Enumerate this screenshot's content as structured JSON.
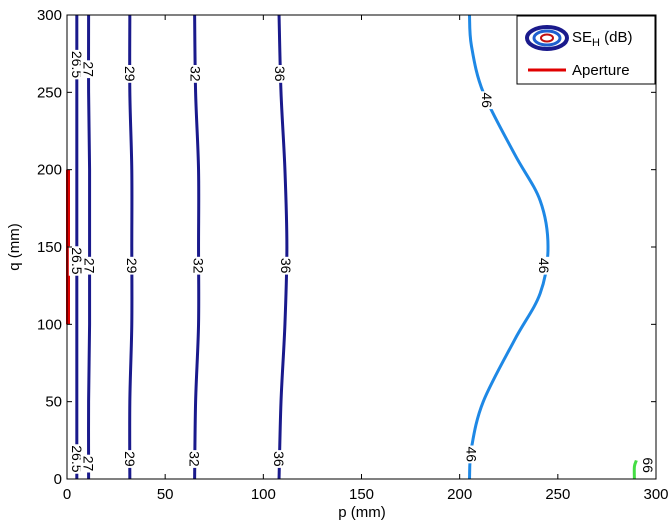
{
  "chart_data": {
    "type": "contour",
    "xlabel": "p (mm)",
    "ylabel": "q (mm)",
    "xlim": [
      0,
      300
    ],
    "ylim": [
      0,
      300
    ],
    "xticks": [
      "0",
      "50",
      "100",
      "150",
      "200",
      "250",
      "300"
    ],
    "yticks": [
      "0",
      "50",
      "100",
      "150",
      "200",
      "250",
      "300"
    ],
    "legend": {
      "position": "top-right",
      "entries": [
        {
          "label_main": "SE",
          "label_sub": "H",
          "label_unit": " (dB)",
          "symbol": "contour-ellipses"
        },
        {
          "label": "Aperture",
          "symbol": "line",
          "color": "#e00000"
        }
      ]
    },
    "aperture": {
      "p": 0,
      "q_range": [
        100,
        200
      ],
      "color": "#e00000"
    },
    "contours": [
      {
        "level": 26.5,
        "color": "#1a1a8c",
        "points": [
          [
            5,
            0
          ],
          [
            5,
            50
          ],
          [
            5,
            100
          ],
          [
            5,
            150
          ],
          [
            5,
            200
          ],
          [
            5,
            250
          ],
          [
            5,
            300
          ]
        ],
        "labels": [
          {
            "text": "26.5",
            "at": [
              5,
              13
            ]
          },
          {
            "text": "26.5",
            "at": [
              5,
              141
            ]
          },
          {
            "text": "26.5",
            "at": [
              5,
              268
            ]
          }
        ]
      },
      {
        "level": 27,
        "color": "#1a1a8c",
        "points": [
          [
            11,
            0
          ],
          [
            11,
            50
          ],
          [
            11.5,
            100
          ],
          [
            11.5,
            150
          ],
          [
            11.5,
            200
          ],
          [
            11,
            250
          ],
          [
            11,
            300
          ]
        ],
        "labels": [
          {
            "text": "27",
            "at": [
              11,
              10
            ]
          },
          {
            "text": "27",
            "at": [
              11.5,
              138
            ]
          },
          {
            "text": "27",
            "at": [
              11,
              265
            ]
          }
        ]
      },
      {
        "level": 29,
        "color": "#1a1a8c",
        "points": [
          [
            32,
            0
          ],
          [
            32,
            50
          ],
          [
            33,
            100
          ],
          [
            33,
            150
          ],
          [
            33,
            200
          ],
          [
            32,
            250
          ],
          [
            32,
            300
          ]
        ],
        "labels": [
          {
            "text": "29",
            "at": [
              32,
              13
            ]
          },
          {
            "text": "29",
            "at": [
              33,
              138
            ]
          },
          {
            "text": "29",
            "at": [
              32,
              262
            ]
          }
        ]
      },
      {
        "level": 32,
        "color": "#1a1a8c",
        "points": [
          [
            65,
            0
          ],
          [
            65.5,
            50
          ],
          [
            67,
            100
          ],
          [
            67,
            150
          ],
          [
            67,
            200
          ],
          [
            65.5,
            250
          ],
          [
            65,
            300
          ]
        ],
        "labels": [
          {
            "text": "32",
            "at": [
              65,
              13
            ]
          },
          {
            "text": "32",
            "at": [
              67,
              138
            ]
          },
          {
            "text": "32",
            "at": [
              65.5,
              262
            ]
          }
        ]
      },
      {
        "level": 36,
        "color": "#1a1a8c",
        "points": [
          [
            108,
            0
          ],
          [
            109,
            50
          ],
          [
            111,
            100
          ],
          [
            112,
            150
          ],
          [
            111,
            200
          ],
          [
            109,
            250
          ],
          [
            108,
            300
          ]
        ],
        "labels": [
          {
            "text": "36",
            "at": [
              108,
              13
            ]
          },
          {
            "text": "36",
            "at": [
              111.5,
              138
            ]
          },
          {
            "text": "36",
            "at": [
              108.5,
              262
            ]
          }
        ]
      },
      {
        "level": 46,
        "color": "#1e88e5",
        "points": [
          [
            205,
            0
          ],
          [
            206,
            20
          ],
          [
            212,
            50
          ],
          [
            228,
            90
          ],
          [
            241,
            120
          ],
          [
            245,
            150
          ],
          [
            241,
            180
          ],
          [
            228,
            210
          ],
          [
            212,
            250
          ],
          [
            206,
            280
          ],
          [
            205,
            300
          ]
        ],
        "labels": [
          {
            "text": "46",
            "at": [
              206,
              16
            ]
          },
          {
            "text": "46",
            "at": [
              243,
              138
            ]
          },
          {
            "text": "46",
            "at": [
              214,
              245
            ]
          }
        ]
      },
      {
        "level": 66,
        "color": "#44dd44",
        "points": [
          [
            289,
            0
          ],
          [
            289,
            8
          ],
          [
            290,
            12
          ]
        ],
        "labels": [
          {
            "text": "66",
            "at": [
              296,
              9
            ]
          }
        ]
      },
      {
        "level": 66,
        "color": "#44dd44",
        "points": [
          [
            290,
            300
          ],
          [
            291,
            292
          ]
        ],
        "labels": []
      }
    ]
  }
}
